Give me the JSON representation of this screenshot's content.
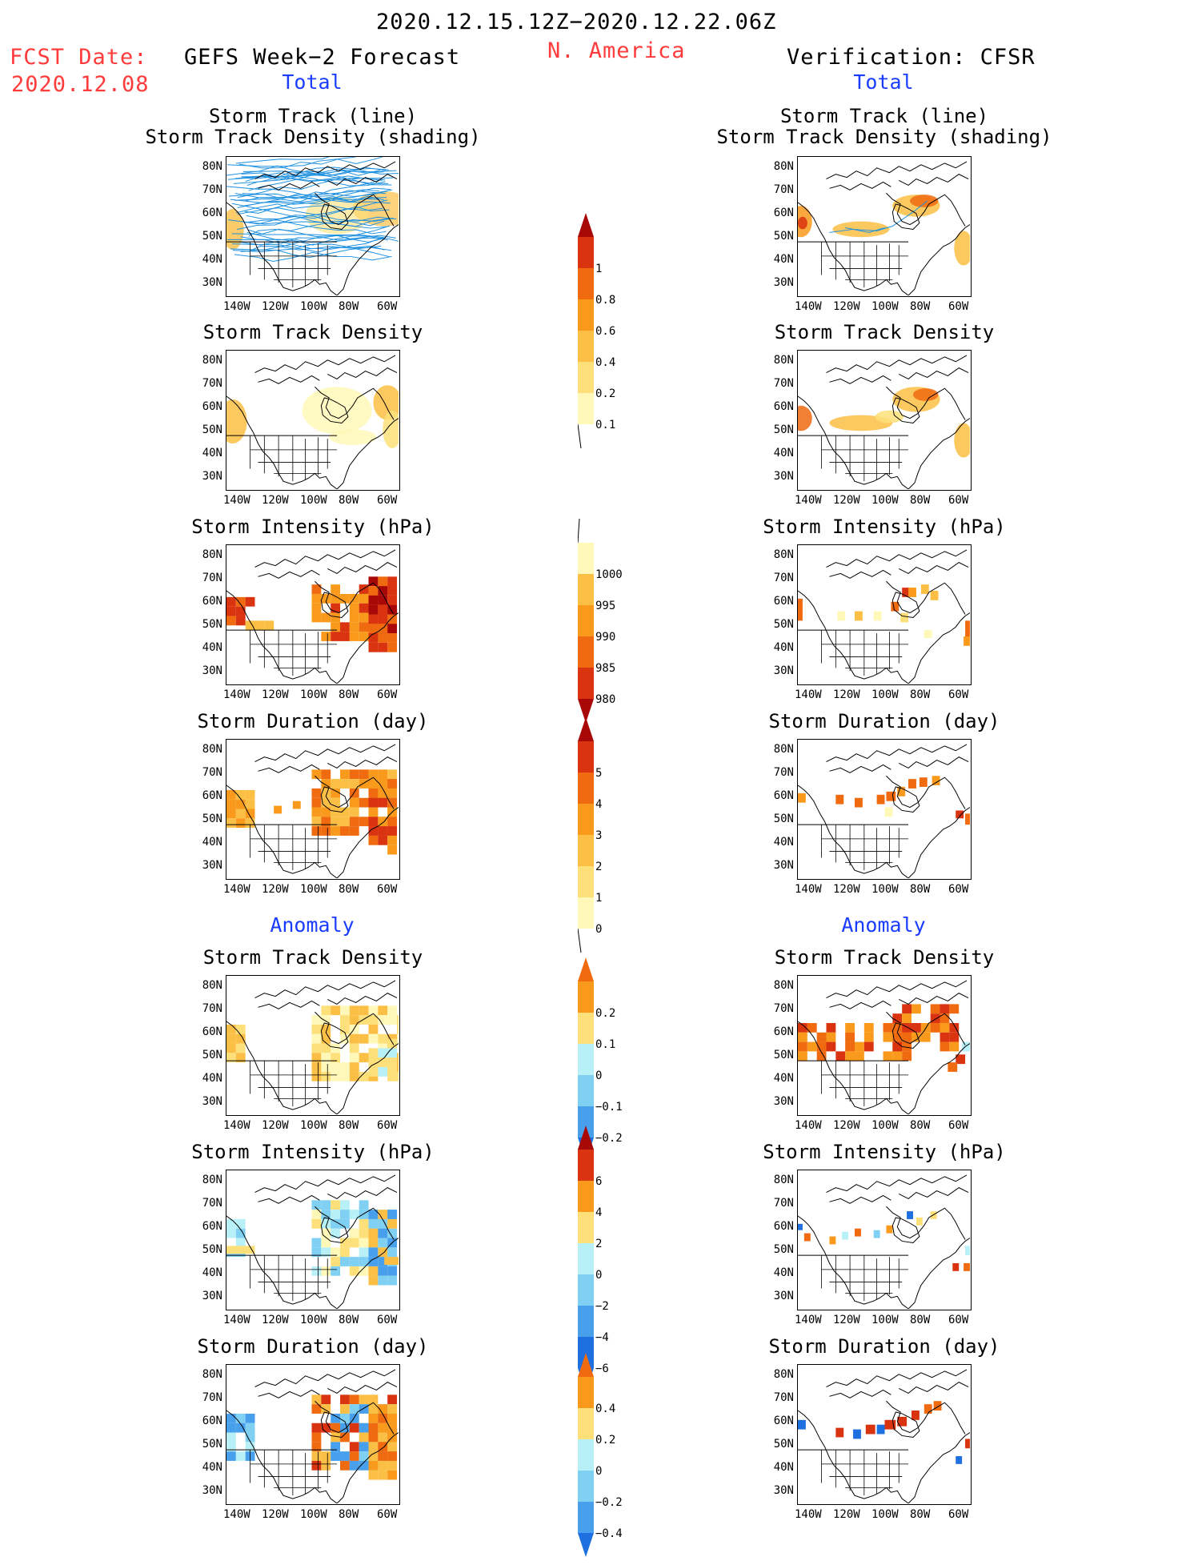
{
  "header": {
    "period": "2020.12.15.12Z−2020.12.22.06Z",
    "region": "N. America",
    "fcst_label": "FCST Date:",
    "fcst_date": "2020.12.08",
    "forecast_title": "GEFS Week−2 Forecast",
    "verification_title": "Verification: CFSR",
    "total_label": "Total",
    "anomaly_label": "Anomaly"
  },
  "panel_titles": {
    "track_line": "Storm Track (line)",
    "track_shading": "Storm Track Density (shading)",
    "density": "Storm Track Density",
    "intensity": "Storm Intensity (hPa)",
    "duration": "Storm Duration (day)"
  },
  "axes": {
    "lat_labels": [
      "80N",
      "70N",
      "60N",
      "50N",
      "40N",
      "30N"
    ],
    "lon_labels": [
      "140W",
      "120W",
      "100W",
      "80W",
      "60W"
    ]
  },
  "colorbars": {
    "density_total": [
      "1",
      "0.8",
      "0.6",
      "0.4",
      "0.2",
      "0.1"
    ],
    "intensity_total": [
      "1000",
      "995",
      "990",
      "985",
      "980"
    ],
    "duration_total": [
      "5",
      "4",
      "3",
      "2",
      "1",
      "0"
    ],
    "density_anom": [
      "0.2",
      "0.1",
      "0",
      "−0.1",
      "−0.2"
    ],
    "intensity_anom": [
      "6",
      "4",
      "2",
      "0",
      "−2",
      "−4",
      "−6"
    ],
    "duration_anom": [
      "0.4",
      "0.2",
      "0",
      "−0.2",
      "−0.4"
    ]
  },
  "palette": {
    "warm": [
      "#fff8b8",
      "#fde07a",
      "#fcbf45",
      "#f99a1c",
      "#f06a10",
      "#d93310",
      "#a80808"
    ],
    "cool": [
      "#b8f0f8",
      "#7fd0f2",
      "#48a0ec",
      "#1e6fe0"
    ],
    "track_line": "#1e90e0",
    "title_blue": "#1a3cff",
    "title_red": "#ff3b3b"
  }
}
